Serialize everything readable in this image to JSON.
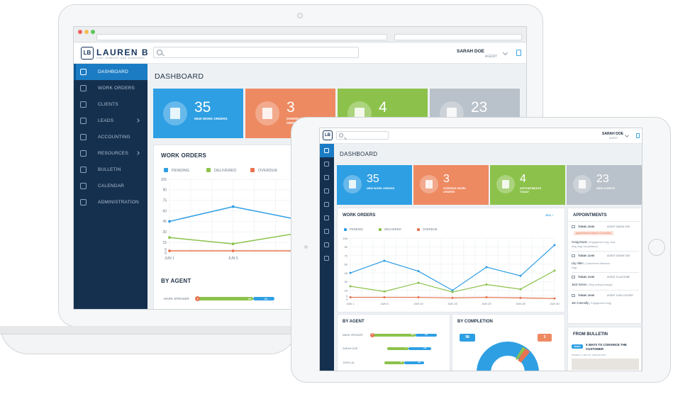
{
  "brand": {
    "name": "LAUREN B",
    "tagline": "FINE JEWELRY AND DIAMONDS",
    "logo_mark": "LB"
  },
  "user": {
    "name": "SARAH DOE",
    "role": "AGENT"
  },
  "page_title": "DASHBOARD",
  "sidebar": {
    "items": [
      {
        "label": "DASHBOARD",
        "icon": "home-icon",
        "active": true,
        "chevron": false
      },
      {
        "label": "WORK ORDERS",
        "icon": "document-icon",
        "active": false,
        "chevron": false
      },
      {
        "label": "CLIENTS",
        "icon": "users-icon",
        "active": false,
        "chevron": false
      },
      {
        "label": "LEADS",
        "icon": "funnel-icon",
        "active": false,
        "chevron": true
      },
      {
        "label": "ACCOUNTING",
        "icon": "briefcase-icon",
        "active": false,
        "chevron": false
      },
      {
        "label": "RESOURCES",
        "icon": "layers-icon",
        "active": false,
        "chevron": true
      },
      {
        "label": "BULLETIN",
        "icon": "bookmark-icon",
        "active": false,
        "chevron": false
      },
      {
        "label": "CALENDAR",
        "icon": "calendar-icon",
        "active": false,
        "chevron": false
      },
      {
        "label": "ADMINISTRATION",
        "icon": "gear-icon",
        "active": false,
        "chevron": false
      }
    ]
  },
  "stats": [
    {
      "value": "35",
      "label": "NEW WORK ORDERS",
      "color": "#2e9fe3",
      "icon": "work-order-icon"
    },
    {
      "value": "3",
      "label": "OVERDUE WORK ORDERS",
      "color": "#ee8a62",
      "icon": "overdue-icon"
    },
    {
      "value": "4",
      "label": "APPOINTMENTS TODAY",
      "color": "#8cc24b",
      "icon": "calendar-icon"
    },
    {
      "value": "23",
      "label": "NEW CLIENTS",
      "color": "#b9c1ca",
      "icon": "clients-icon"
    }
  ],
  "work_orders": {
    "title": "WORK ORDERS",
    "all_link": "ALL",
    "legend": [
      {
        "name": "PENDING",
        "color": "#2e9fe3"
      },
      {
        "name": "DELIVERED",
        "color": "#8cc24b"
      },
      {
        "name": "OVERDUE",
        "color": "#e8734f"
      }
    ]
  },
  "chart_data": {
    "type": "line",
    "x": [
      "JUN 1",
      "JUN 5",
      "JUN 10",
      "JUN 15",
      "JUN 20",
      "JUN 25",
      "JUN 30"
    ],
    "ylim": [
      0,
      105
    ],
    "yticks": [
      0,
      5,
      15,
      30,
      45,
      60,
      75,
      90,
      105
    ],
    "series": [
      {
        "name": "PENDING",
        "color": "#2e9fe3",
        "values": [
          45,
          66,
          48,
          15,
          55,
          40,
          93
        ]
      },
      {
        "name": "DELIVERED",
        "color": "#8cc24b",
        "values": [
          22,
          13,
          28,
          12,
          25,
          17,
          49
        ]
      },
      {
        "name": "OVERDUE",
        "color": "#e8734f",
        "values": [
          3,
          3,
          3,
          2,
          3,
          2,
          1
        ]
      }
    ],
    "grid": true,
    "legend": "top-left"
  },
  "by_agent": {
    "title": "BY AGENT",
    "agents": [
      {
        "name": "MARK SPENSER",
        "overdue": "1",
        "delivered": "16",
        "pending": "21"
      },
      {
        "name": "SARAH DOE",
        "delivered": "7",
        "pending": "14"
      },
      {
        "name": "JOHN LUL",
        "delivered": "6",
        "pending": "12"
      }
    ]
  },
  "by_completion": {
    "title": "BY COMPLETION",
    "completed": "98",
    "overdue": "3",
    "colors": {
      "completed": "#2e9fe3",
      "overdue": "#e8734f",
      "delivered": "#8cc24b"
    }
  },
  "appointments": {
    "title": "APPOINTMENTS",
    "items": [
      {
        "time": "TODAY, 15:00",
        "agent": "AGENT SARAH DOE",
        "alert": "appointment starts in 5 minutes",
        "client": "Craig Davis",
        "note": "( Engagement ring, wed-",
        "note2": "ding rings consultation)"
      },
      {
        "time": "TODAY, 13:00",
        "agent": "AGENT SARAH DOE",
        "client": "Lily Allen",
        "note": "( Customized diamond",
        "note2": "ring)"
      },
      {
        "time": "TODAY, 13:00",
        "agent": "AGENT JULIA ROBE",
        "client": "Jack Green",
        "note": "( Ring setting change)"
      },
      {
        "time": "TODAY, 15:00",
        "agent": "AGENT JOHN LOCKER",
        "client": "Jim Connolly",
        "note": "( Engagement ring)"
      }
    ]
  },
  "bulletin": {
    "title": "FROM BULLETIN",
    "tag": "NEWS",
    "headline": "5 WAYS TO CONVINCE THE CUSTOMER",
    "meta": "MONDAY, 4 MAY BY JANE BLOOM"
  }
}
